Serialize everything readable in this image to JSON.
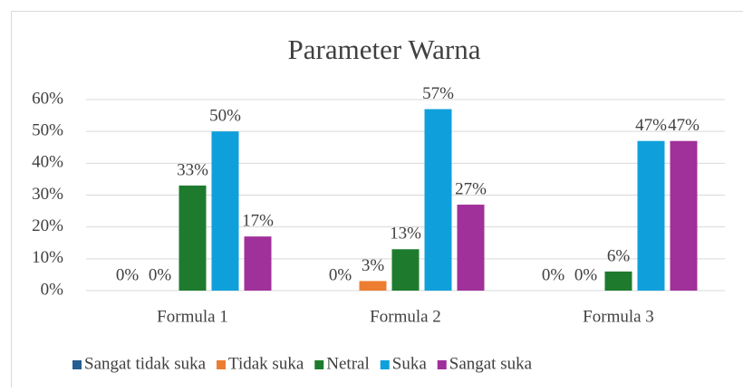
{
  "chart_data": {
    "type": "bar",
    "title": "Parameter Warna",
    "categories": [
      "Formula 1",
      "Formula 2",
      "Formula 3"
    ],
    "series": [
      {
        "name": "Sangat tidak suka",
        "color": "#255e91",
        "values": [
          0,
          0,
          0
        ],
        "value_labels": [
          "0%",
          "0%",
          "0%"
        ]
      },
      {
        "name": "Tidak suka",
        "color": "#ed7d31",
        "values": [
          0,
          3,
          0
        ],
        "value_labels": [
          "0%",
          "3%",
          "0%"
        ]
      },
      {
        "name": "Netral",
        "color": "#1e7b2e",
        "values": [
          33,
          13,
          6
        ],
        "value_labels": [
          "33%",
          "13%",
          "6%"
        ]
      },
      {
        "name": "Suka",
        "color": "#0fa0dc",
        "values": [
          50,
          57,
          47
        ],
        "value_labels": [
          "50%",
          "57%",
          "47%"
        ]
      },
      {
        "name": "Sangat suka",
        "color": "#a0309a",
        "values": [
          17,
          27,
          47
        ],
        "value_labels": [
          "17%",
          "27%",
          "47%"
        ]
      }
    ],
    "ylim": [
      0,
      60
    ],
    "yticks": [
      {
        "value": 0,
        "label": "0%"
      },
      {
        "value": 10,
        "label": "10%"
      },
      {
        "value": 20,
        "label": "20%"
      },
      {
        "value": 30,
        "label": "30%"
      },
      {
        "value": 40,
        "label": "40%"
      },
      {
        "value": 50,
        "label": "50%"
      },
      {
        "value": 60,
        "label": "60%"
      }
    ],
    "grid": true,
    "legend": "bottom"
  }
}
